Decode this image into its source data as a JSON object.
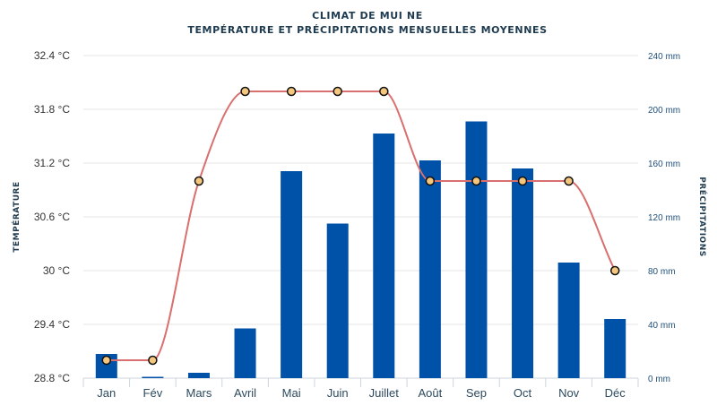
{
  "chart_data": {
    "type": "bar+line",
    "title": "CLIMAT DE MUI NE",
    "subtitle": "TEMPÉRATURE ET PRÉCIPITATIONS MENSUELLES MOYENNES",
    "categories": [
      "Jan",
      "Fév",
      "Mars",
      "Avril",
      "Mai",
      "Juin",
      "Juillet",
      "Août",
      "Sep",
      "Oct",
      "Nov",
      "Déc"
    ],
    "series": [
      {
        "type": "bar",
        "axis": "right",
        "color": "#0051a8",
        "values": [
          18,
          1,
          4,
          37,
          154,
          115,
          182,
          162,
          191,
          156,
          86,
          44
        ]
      },
      {
        "type": "line",
        "axis": "left",
        "color": "#d9706f",
        "marker_fill": "#f5c77e",
        "values": [
          29.0,
          29.0,
          31.0,
          32.0,
          32.0,
          32.0,
          32.0,
          31.0,
          31.0,
          31.0,
          31.0,
          30.0
        ]
      }
    ],
    "y_left": {
      "label": "TEMPÉRATURE",
      "range": [
        28.8,
        32.4
      ],
      "ticks": [
        "28.8 °C",
        "29.4 °C",
        "30 °C",
        "30.6 °C",
        "31.2 °C",
        "31.8 °C",
        "32.4 °C"
      ]
    },
    "y_right": {
      "label": "PRÉCIPITATIONS",
      "range": [
        0,
        240
      ],
      "ticks": [
        "0 mm",
        "40 mm",
        "80 mm",
        "120 mm",
        "160 mm",
        "200 mm",
        "240 mm"
      ]
    },
    "grid": true,
    "legend": "none"
  }
}
